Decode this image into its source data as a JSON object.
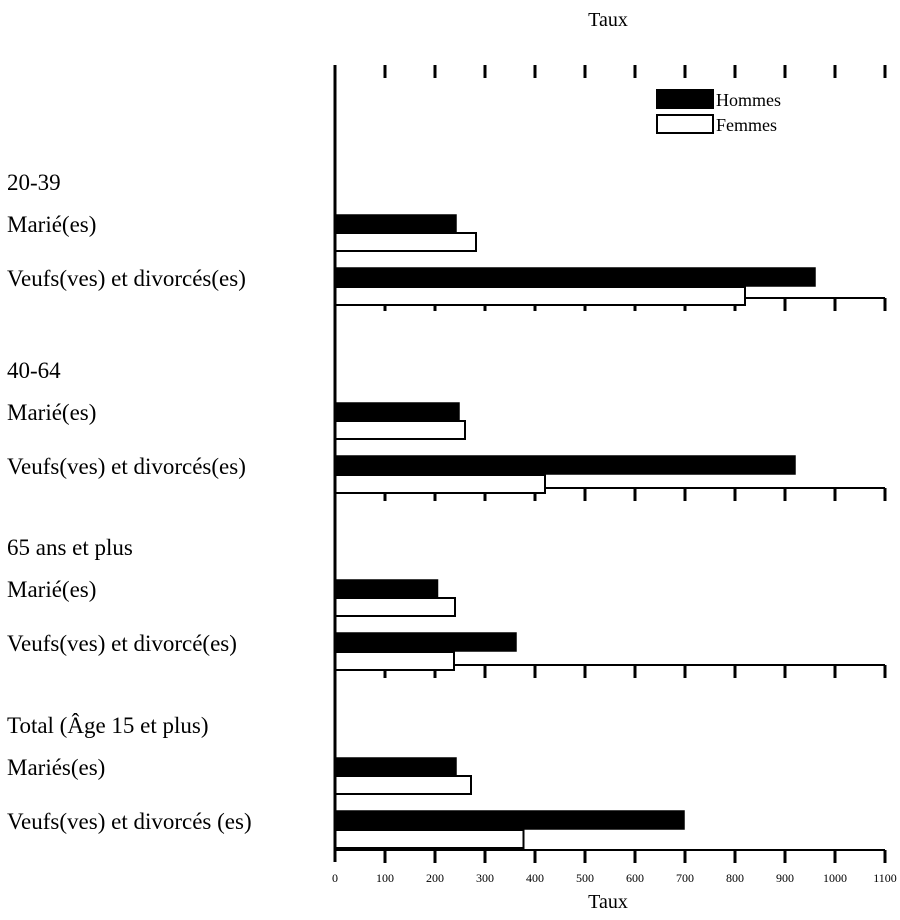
{
  "chart_data": {
    "type": "bar",
    "orientation": "horizontal",
    "title": "",
    "top_axis_label": "Taux",
    "xlabel": "Taux",
    "xlim": [
      0,
      1100
    ],
    "xticks": [
      0,
      100,
      200,
      300,
      400,
      500,
      600,
      700,
      800,
      900,
      1000,
      1100
    ],
    "grid": false,
    "legend_position": "top-right",
    "legend": [
      {
        "name": "Hommes",
        "fill": "#000000"
      },
      {
        "name": "Femmes",
        "fill": "#ffffff"
      }
    ],
    "groups": [
      {
        "label": "20-39",
        "categories": [
          {
            "label": "Marié(es)",
            "Hommes": 242,
            "Femmes": 282
          },
          {
            "label": "Veufs(ves) et divorcés(es)",
            "Hommes": 960,
            "Femmes": 820
          }
        ]
      },
      {
        "label": "40-64",
        "categories": [
          {
            "label": "Marié(es)",
            "Hommes": 248,
            "Femmes": 260
          },
          {
            "label": "Veufs(ves) et divorcés(es)",
            "Hommes": 920,
            "Femmes": 420
          }
        ]
      },
      {
        "label": "65 ans et plus",
        "categories": [
          {
            "label": "Marié(es)",
            "Hommes": 205,
            "Femmes": 240
          },
          {
            "label": "Veufs(ves) et divorcé(es)",
            "Hommes": 362,
            "Femmes": 238
          }
        ]
      },
      {
        "label": "Total (Âge 15 et plus)",
        "categories": [
          {
            "label": "Mariés(es)",
            "Hommes": 242,
            "Femmes": 272
          },
          {
            "label": "Veufs(ves) et divorcés (es)",
            "Hommes": 698,
            "Femmes": 377
          }
        ]
      }
    ]
  }
}
